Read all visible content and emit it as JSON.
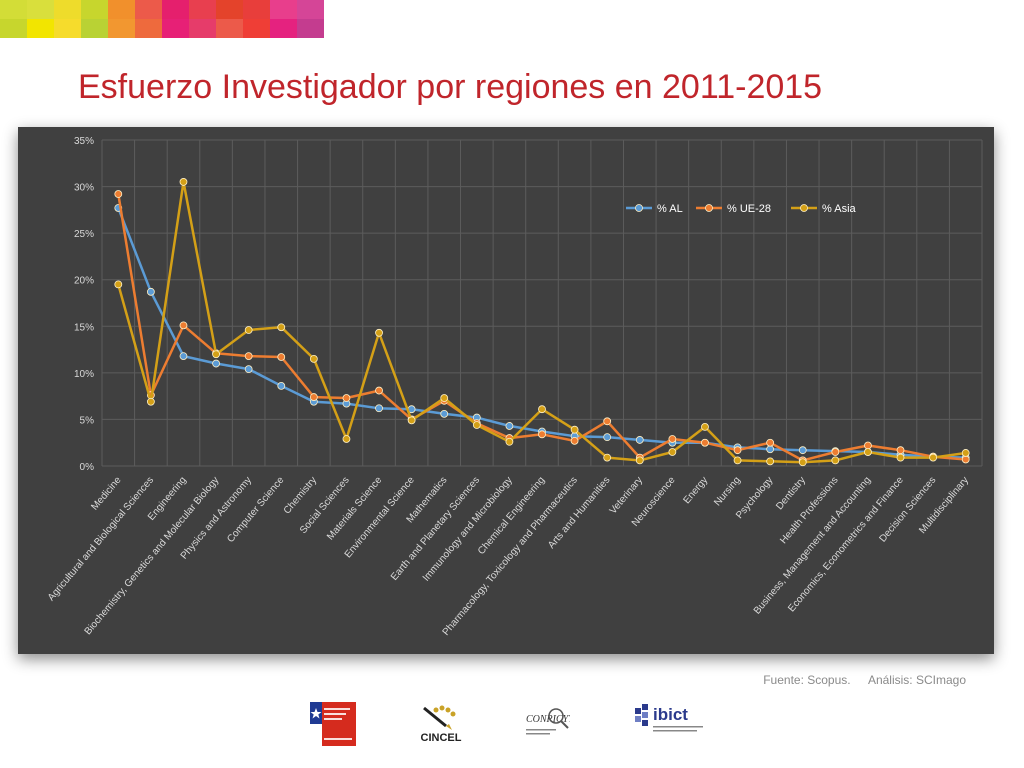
{
  "slide": {
    "title": "Esfuerzo Investigador por regiones en 2011-2015",
    "source_label": "Fuente: Scopus.",
    "analysis_label": "Análisis: SCImago",
    "stripe_colors": [
      [
        "#d3dd37",
        "#c7d62d"
      ],
      [
        "#d9df3c",
        "#f2e500"
      ],
      [
        "#eedc2b",
        "#f6dc2c"
      ],
      [
        "#c7d62d",
        "#b9d234"
      ],
      [
        "#f1902c",
        "#f29730"
      ],
      [
        "#ec5a4a",
        "#ee6a3d"
      ],
      [
        "#e51f6d",
        "#e72076"
      ],
      [
        "#e83f4f",
        "#e63c6a"
      ],
      [
        "#e4432b",
        "#ec5a4a"
      ],
      [
        "#e83e3b",
        "#ef3e36"
      ],
      [
        "#e83e8c",
        "#e5227f"
      ],
      [
        "#d54597",
        "#c43c8f"
      ]
    ],
    "logos": {
      "gobierno": "Gobierno de Chile logo",
      "cincel": "CINCEL",
      "conricyt": "CONRICYT",
      "ibict": "ibict"
    }
  },
  "chart_data": {
    "type": "line",
    "title": "",
    "xlabel": "",
    "ylabel": "",
    "ylim": [
      0,
      35
    ],
    "yticks": [
      0,
      5,
      10,
      15,
      20,
      25,
      30,
      35
    ],
    "ytick_labels": [
      "0%",
      "5%",
      "10%",
      "15%",
      "20%",
      "25%",
      "30%",
      "35%"
    ],
    "grid": true,
    "legend_position": "top-right",
    "categories": [
      "Medicine",
      "Agricultural and Biological Sciences",
      "Engineering",
      "Biochemistry, Genetics and Molecular Biology",
      "Physics and Astronomy",
      "Computer Science",
      "Chemistry",
      "Social Sciences",
      "Materials Science",
      "Environmental Science",
      "Mathematics",
      "Earth and Planetary Sciences",
      "Immunology and Microbiology",
      "Chemical Engineering",
      "Pharmacology, Toxicology and Pharmaceutics",
      "Arts and Humanities",
      "Veterinary",
      "Neuroscience",
      "Energy",
      "Nursing",
      "Psychology",
      "Dentistry",
      "Health Professions",
      "Business, Management and Accounting",
      "Economics, Econometrics and Finance",
      "Decision Sciences",
      "Multidisciplinary"
    ],
    "series": [
      {
        "name": "% AL",
        "color": "#5b9bd5",
        "values": [
          27.7,
          18.7,
          11.8,
          11.0,
          10.4,
          8.6,
          6.9,
          6.7,
          6.2,
          6.1,
          5.6,
          5.2,
          4.3,
          3.7,
          3.2,
          3.1,
          2.8,
          2.5,
          2.5,
          2.0,
          1.8,
          1.7,
          1.6,
          1.5,
          1.2,
          1.0,
          0.9
        ]
      },
      {
        "name": "% UE-28",
        "color": "#ed7d31",
        "values": [
          29.2,
          7.6,
          15.1,
          12.1,
          11.8,
          11.7,
          7.4,
          7.3,
          8.1,
          5.0,
          7.0,
          4.6,
          3.0,
          3.4,
          2.7,
          4.8,
          0.9,
          2.9,
          2.5,
          1.7,
          2.5,
          0.6,
          1.5,
          2.2,
          1.7,
          1.0,
          0.7
        ]
      },
      {
        "name": "% Asia",
        "color": "#d4a017",
        "values": [
          19.5,
          6.9,
          30.5,
          12.0,
          14.6,
          14.9,
          11.5,
          2.9,
          14.3,
          4.9,
          7.3,
          4.4,
          2.6,
          6.1,
          3.9,
          0.9,
          0.6,
          1.5,
          4.2,
          0.6,
          0.5,
          0.4,
          0.6,
          1.5,
          0.9,
          0.9,
          1.4
        ]
      }
    ]
  }
}
